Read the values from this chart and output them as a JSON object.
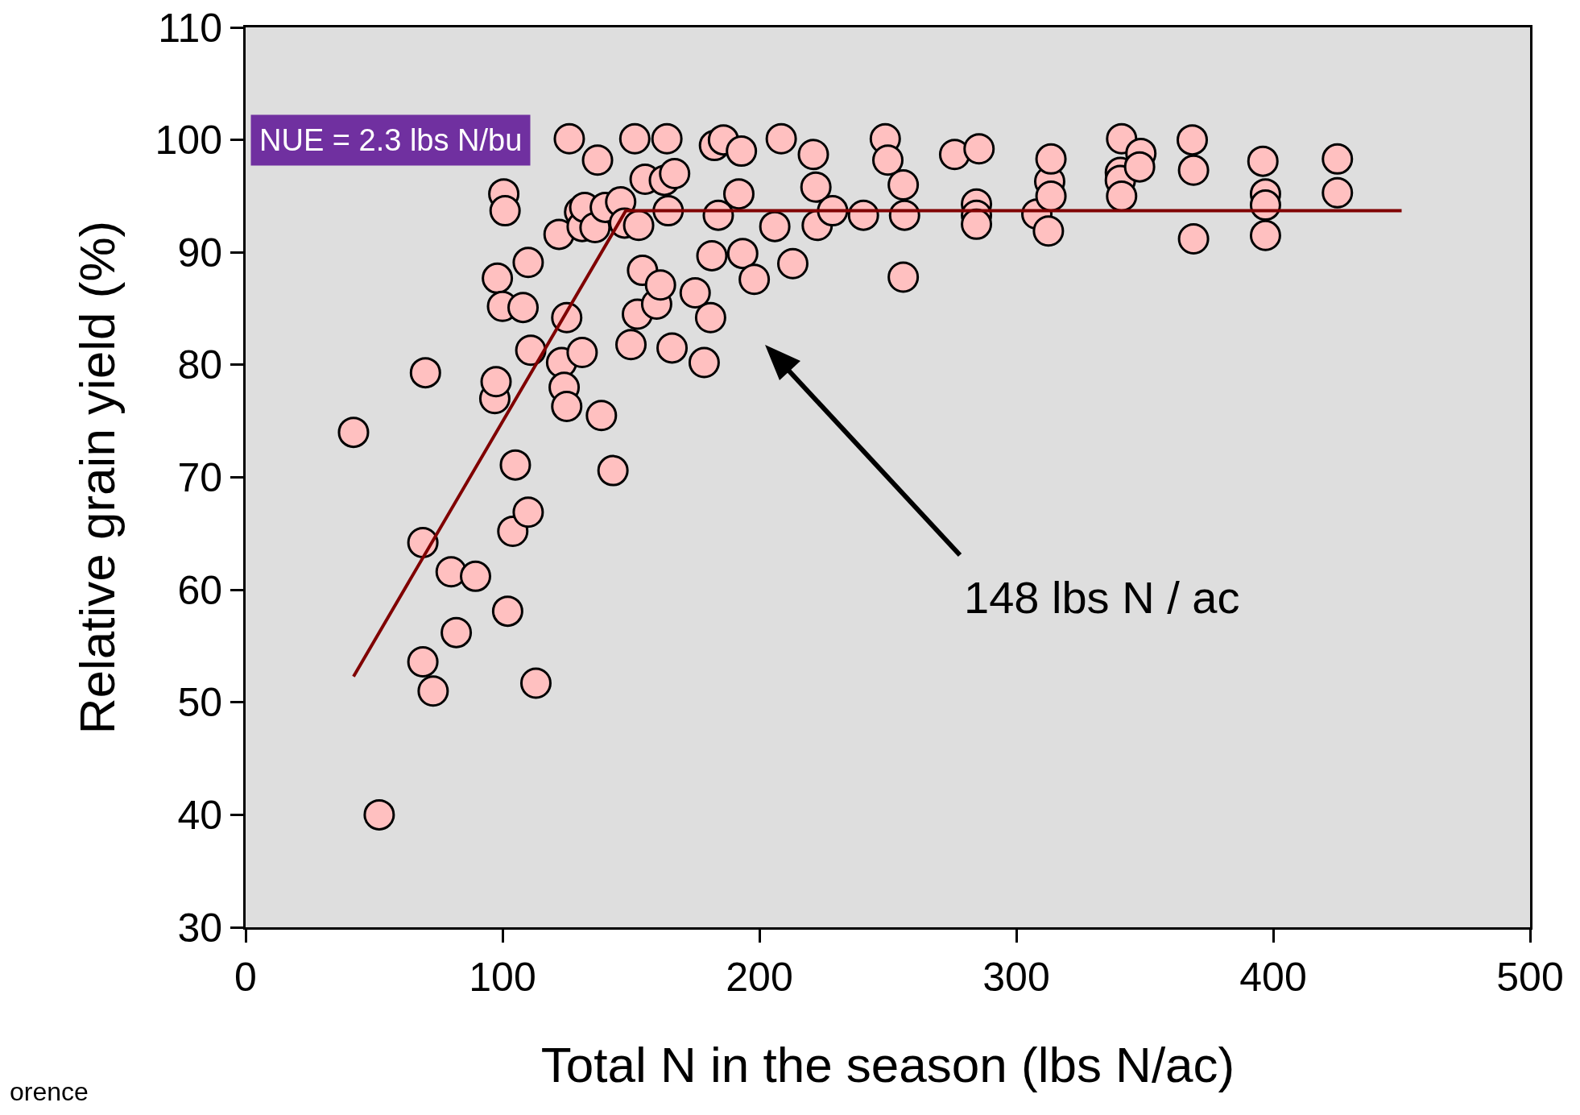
{
  "chart_data": {
    "type": "scatter",
    "xlabel": "Total N in the season (lbs N/ac)",
    "ylabel": "Relative grain yield (%)",
    "xlim": [
      0,
      500
    ],
    "xticks": [
      0,
      100,
      200,
      300,
      400,
      500
    ],
    "ylim": [
      30,
      110
    ],
    "yticks": [
      30,
      40,
      50,
      60,
      70,
      80,
      90,
      100,
      110
    ],
    "grid": false,
    "legend": false,
    "annotations": [
      "NUE = 2.3 lbs N/bu",
      "148 lbs N / ac",
      "orence"
    ],
    "series": [
      {
        "marker": "circle",
        "color": "#ffc0c0",
        "x": [
          42,
          52,
          70,
          69,
          69,
          73,
          80,
          89.5,
          82,
          97,
          97.5,
          98,
          100.5,
          101,
          100,
          102,
          104,
          105,
          108,
          110,
          110,
          111,
          113,
          122,
          123,
          124,
          125,
          125,
          126,
          131,
          130,
          131,
          132,
          136,
          137,
          138.5,
          140,
          143,
          146,
          147.5,
          150,
          151.5,
          152.5,
          153,
          154.5,
          155.5,
          160,
          161.5,
          163,
          164,
          164.5,
          166,
          167,
          175,
          178.5,
          181,
          181.5,
          182.5,
          184,
          186,
          193,
          193.5,
          192,
          198,
          206,
          208.5,
          213,
          221,
          222,
          222.5,
          228.5,
          240.5,
          249,
          250,
          256,
          256.5,
          256,
          276,
          284.5,
          284.5,
          284.5,
          285.5,
          308,
          312.5,
          313,
          313.5,
          313.5,
          341,
          340.5,
          340.5,
          341,
          348.5,
          348,
          368.5,
          369,
          369,
          396,
          397,
          397,
          397,
          425,
          425
        ],
        "values": [
          74,
          40,
          79.3,
          64.2,
          53.6,
          51,
          61.6,
          61.2,
          56.2,
          77,
          78.5,
          87.7,
          95.2,
          93.7,
          85.2,
          58.1,
          65.2,
          71.1,
          85.1,
          66.9,
          89.1,
          81.3,
          51.7,
          91.6,
          80.2,
          78,
          76.3,
          84.2,
          100.1,
          81.1,
          93.6,
          92.3,
          94,
          92.2,
          98.2,
          75.5,
          94,
          70.6,
          94.5,
          92.6,
          81.8,
          100.1,
          84.5,
          92.4,
          88.4,
          96.5,
          85.4,
          87.1,
          96.4,
          100.1,
          93.7,
          81.5,
          97,
          86.4,
          80.2,
          84.2,
          89.7,
          99.5,
          93.3,
          100,
          99,
          89.9,
          95.2,
          87.6,
          92.3,
          100.1,
          89,
          98.7,
          95.8,
          92.4,
          93.7,
          93.3,
          100.1,
          98.2,
          96,
          93.3,
          87.8,
          98.7,
          94.3,
          93.3,
          92.5,
          99.2,
          93.4,
          91.9,
          96.3,
          98.3,
          95,
          100.1,
          97.1,
          96.4,
          95,
          98.8,
          97.6,
          100,
          97.3,
          91.2,
          98.1,
          95.2,
          94.2,
          91.5,
          98.3,
          95.3
        ]
      },
      {
        "type": "line",
        "marker": "none",
        "line_style": "solid",
        "color": "#800000",
        "x": [
          42,
          148,
          450
        ],
        "values": [
          52.3,
          93.7,
          93.7
        ]
      }
    ]
  }
}
